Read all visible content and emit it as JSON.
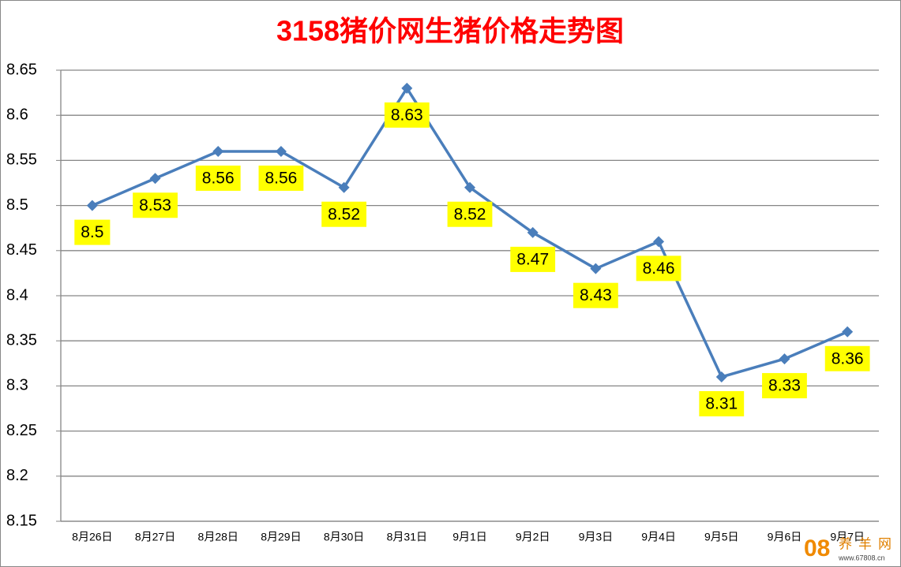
{
  "chart_data": {
    "type": "line",
    "title": "3158猪价网生猪价格走势图",
    "categories": [
      "8月26日",
      "8月27日",
      "8月28日",
      "8月29日",
      "8月30日",
      "8月31日",
      "9月1日",
      "9月2日",
      "9月3日",
      "9月4日",
      "9月5日",
      "9月6日",
      "9月7日"
    ],
    "series": [
      {
        "name": "生猪价格",
        "color": "#4a7ebb",
        "values": [
          8.5,
          8.53,
          8.56,
          8.56,
          8.52,
          8.63,
          8.52,
          8.47,
          8.43,
          8.46,
          8.31,
          8.33,
          8.36
        ]
      }
    ],
    "ylim": [
      8.15,
      8.65
    ],
    "yticks": [
      8.15,
      8.2,
      8.25,
      8.3,
      8.35,
      8.4,
      8.45,
      8.5,
      8.55,
      8.6,
      8.65
    ],
    "grid": true,
    "label_color": "#ffff00",
    "watermark": {
      "logo": "08",
      "name": "养羊网",
      "url": "www.67808.cn"
    }
  }
}
